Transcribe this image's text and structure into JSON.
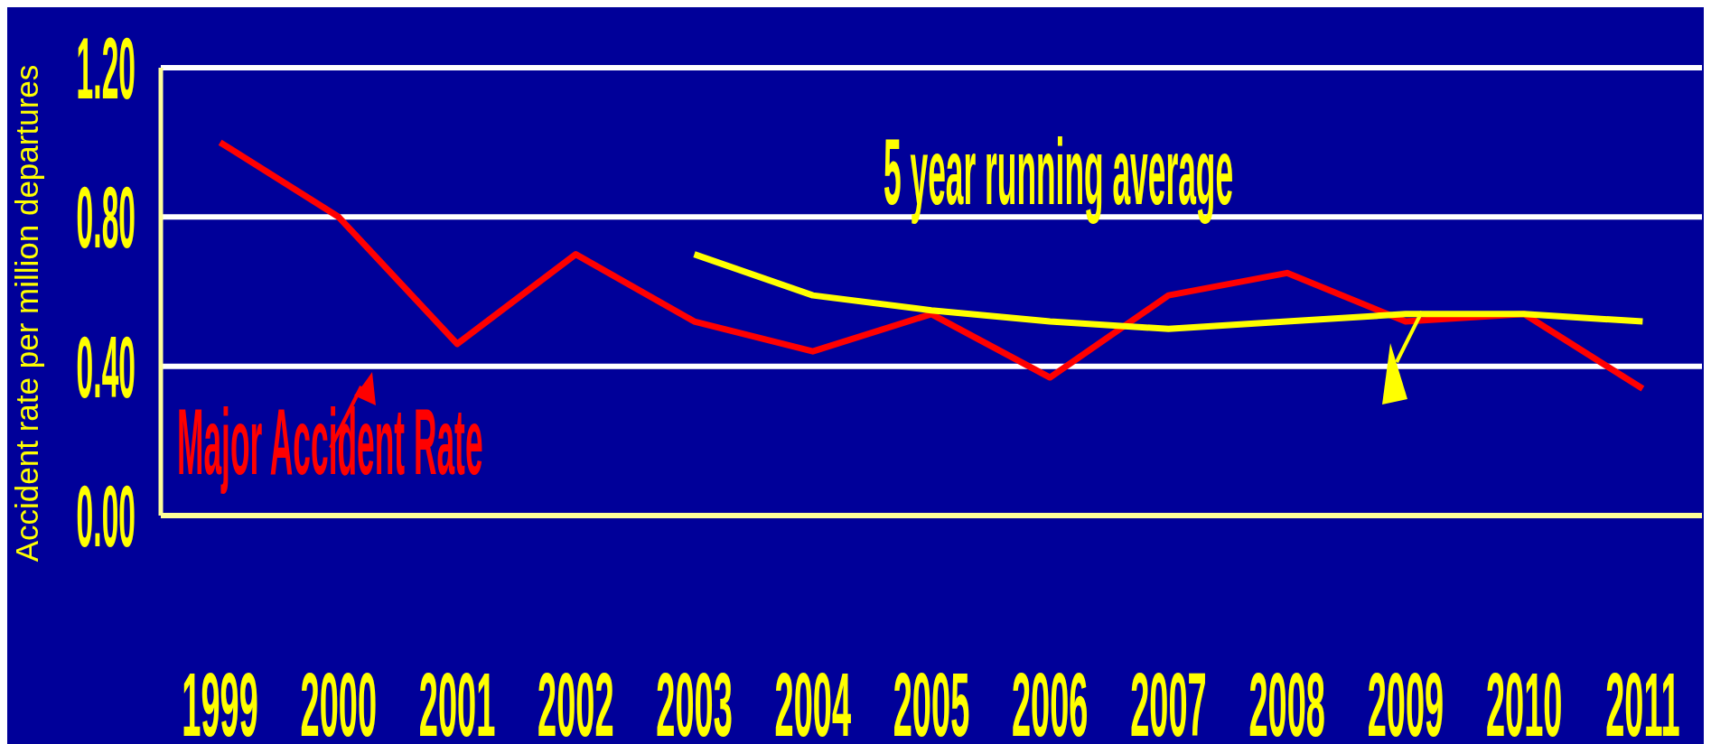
{
  "chart_data": {
    "type": "line",
    "ylabel": "Accident rate per million departures",
    "categories": [
      "1999",
      "2000",
      "2001",
      "2002",
      "2003",
      "2004",
      "2005",
      "2006",
      "2007",
      "2008",
      "2009",
      "2010",
      "2011"
    ],
    "series": [
      {
        "name": "Major Accident Rate",
        "color": "#ff0000",
        "values": [
          1.0,
          0.8,
          0.46,
          0.7,
          0.52,
          0.44,
          0.54,
          0.37,
          0.59,
          0.65,
          0.52,
          0.54,
          0.34
        ]
      },
      {
        "name": "5 year running average",
        "color": "#ffff00",
        "values": [
          null,
          null,
          null,
          null,
          0.7,
          0.59,
          0.55,
          0.52,
          0.5,
          0.52,
          0.54,
          0.54,
          0.52
        ]
      }
    ],
    "ylim": [
      0,
      1.2
    ],
    "yticks": [
      {
        "value": 0,
        "label": "0.00"
      },
      {
        "value": 0.4,
        "label": "0.40"
      },
      {
        "value": 0.8,
        "label": "0.80"
      },
      {
        "value": 1.2,
        "label": "1.20"
      }
    ],
    "grid": "y",
    "line_style": "solid",
    "marker": "none"
  }
}
